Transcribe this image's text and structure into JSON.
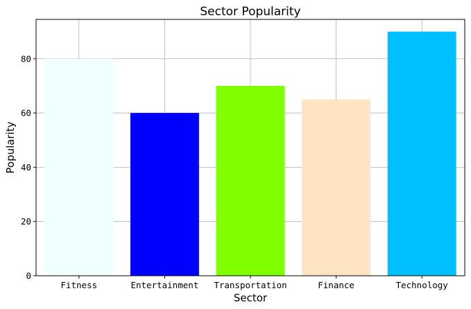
{
  "chart_data": {
    "type": "bar",
    "title": "Sector Popularity",
    "xlabel": "Sector",
    "ylabel": "Popularity",
    "categories": [
      "Fitness",
      "Entertainment",
      "Transportation",
      "Finance",
      "Technology"
    ],
    "values": [
      80,
      60,
      70,
      65,
      90
    ],
    "colors": [
      "#f0ffff",
      "#0000ff",
      "#7fff00",
      "#ffe4c4",
      "#00bfff"
    ],
    "ylim": [
      0,
      94.5
    ],
    "yticks": [
      0,
      20,
      40,
      60,
      80
    ],
    "grid": true,
    "legend": "none"
  }
}
